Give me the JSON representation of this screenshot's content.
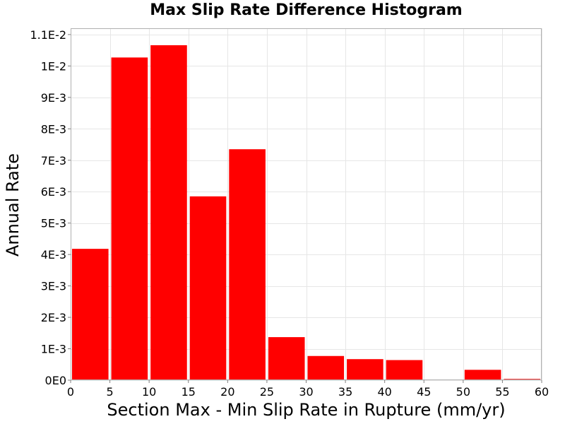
{
  "chart_data": {
    "type": "bar",
    "title": "Max Slip Rate Difference Histogram",
    "xlabel": "Section Max - Min Slip Rate in Rupture (mm/yr)",
    "ylabel": "Annual Rate",
    "xlim": [
      0,
      60
    ],
    "ylim": [
      0,
      0.0112
    ],
    "x_ticks": [
      0,
      5,
      10,
      15,
      20,
      25,
      30,
      35,
      40,
      45,
      50,
      55,
      60
    ],
    "x_tick_labels": [
      "0",
      "5",
      "10",
      "15",
      "20",
      "25",
      "30",
      "35",
      "40",
      "45",
      "50",
      "55",
      "60"
    ],
    "y_ticks": [
      0,
      0.001,
      0.002,
      0.003,
      0.004,
      0.005,
      0.006,
      0.007,
      0.008,
      0.009,
      0.01,
      0.011
    ],
    "y_tick_labels": [
      "0E0",
      "1E-3",
      "2E-3",
      "3E-3",
      "4E-3",
      "5E-3",
      "6E-3",
      "7E-3",
      "8E-3",
      "9E-3",
      "1E-2",
      "1.1E-2"
    ],
    "bin_width": 5,
    "bins": [
      {
        "x": 2.5,
        "value": 0.00418
      },
      {
        "x": 7.5,
        "value": 0.01027
      },
      {
        "x": 12.5,
        "value": 0.01066
      },
      {
        "x": 17.5,
        "value": 0.00585
      },
      {
        "x": 22.5,
        "value": 0.00735
      },
      {
        "x": 27.5,
        "value": 0.00137
      },
      {
        "x": 32.5,
        "value": 0.00077
      },
      {
        "x": 37.5,
        "value": 0.00067
      },
      {
        "x": 42.5,
        "value": 0.00064
      },
      {
        "x": 47.5,
        "value": 0.0
      },
      {
        "x": 52.5,
        "value": 0.00033
      },
      {
        "x": 57.5,
        "value": 4e-05
      }
    ],
    "bar_color": "#ff0000",
    "grid": true,
    "legend": "none"
  }
}
